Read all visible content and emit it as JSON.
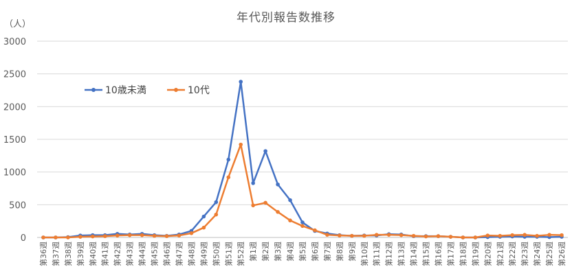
{
  "chart_data": {
    "type": "line",
    "title": "年代別報告数推移",
    "yunit": "（人）",
    "ylim": [
      0,
      3000
    ],
    "yticks": [
      0,
      500,
      1000,
      1500,
      2000,
      2500,
      3000
    ],
    "grid": "horizontal",
    "legend_position": "upper-left",
    "categories": [
      "第36週",
      "第37週",
      "第38週",
      "第39週",
      "第40週",
      "第41週",
      "第42週",
      "第43週",
      "第44週",
      "第45週",
      "第46週",
      "第47週",
      "第48週",
      "第49週",
      "第50週",
      "第51週",
      "第52週",
      "第1週",
      "第2週",
      "第3週",
      "第4週",
      "第5週",
      "第6週",
      "第7週",
      "第8週",
      "第9週",
      "第10週",
      "第11週",
      "第12週",
      "第13週",
      "第14週",
      "第15週",
      "第16週",
      "第17週",
      "第18週",
      "第19週",
      "第20週",
      "第21週",
      "第22週",
      "第23週",
      "第24週",
      "第25週",
      "第26週"
    ],
    "series": [
      {
        "name": "10歳未満",
        "color": "#4472C4",
        "values": [
          0,
          0,
          5,
          30,
          35,
          35,
          55,
          45,
          55,
          35,
          25,
          45,
          100,
          320,
          540,
          1190,
          2380,
          830,
          1320,
          810,
          570,
          230,
          100,
          60,
          35,
          25,
          30,
          30,
          50,
          45,
          20,
          20,
          20,
          10,
          0,
          0,
          5,
          10,
          15,
          10,
          10,
          5,
          10
        ]
      },
      {
        "name": "10代",
        "color": "#ED7D31",
        "values": [
          0,
          0,
          0,
          10,
          15,
          20,
          30,
          35,
          35,
          25,
          20,
          30,
          65,
          150,
          350,
          920,
          1420,
          490,
          530,
          390,
          260,
          175,
          110,
          40,
          30,
          25,
          25,
          40,
          40,
          35,
          25,
          15,
          20,
          10,
          0,
          0,
          30,
          25,
          35,
          40,
          25,
          40,
          35
        ]
      }
    ]
  }
}
